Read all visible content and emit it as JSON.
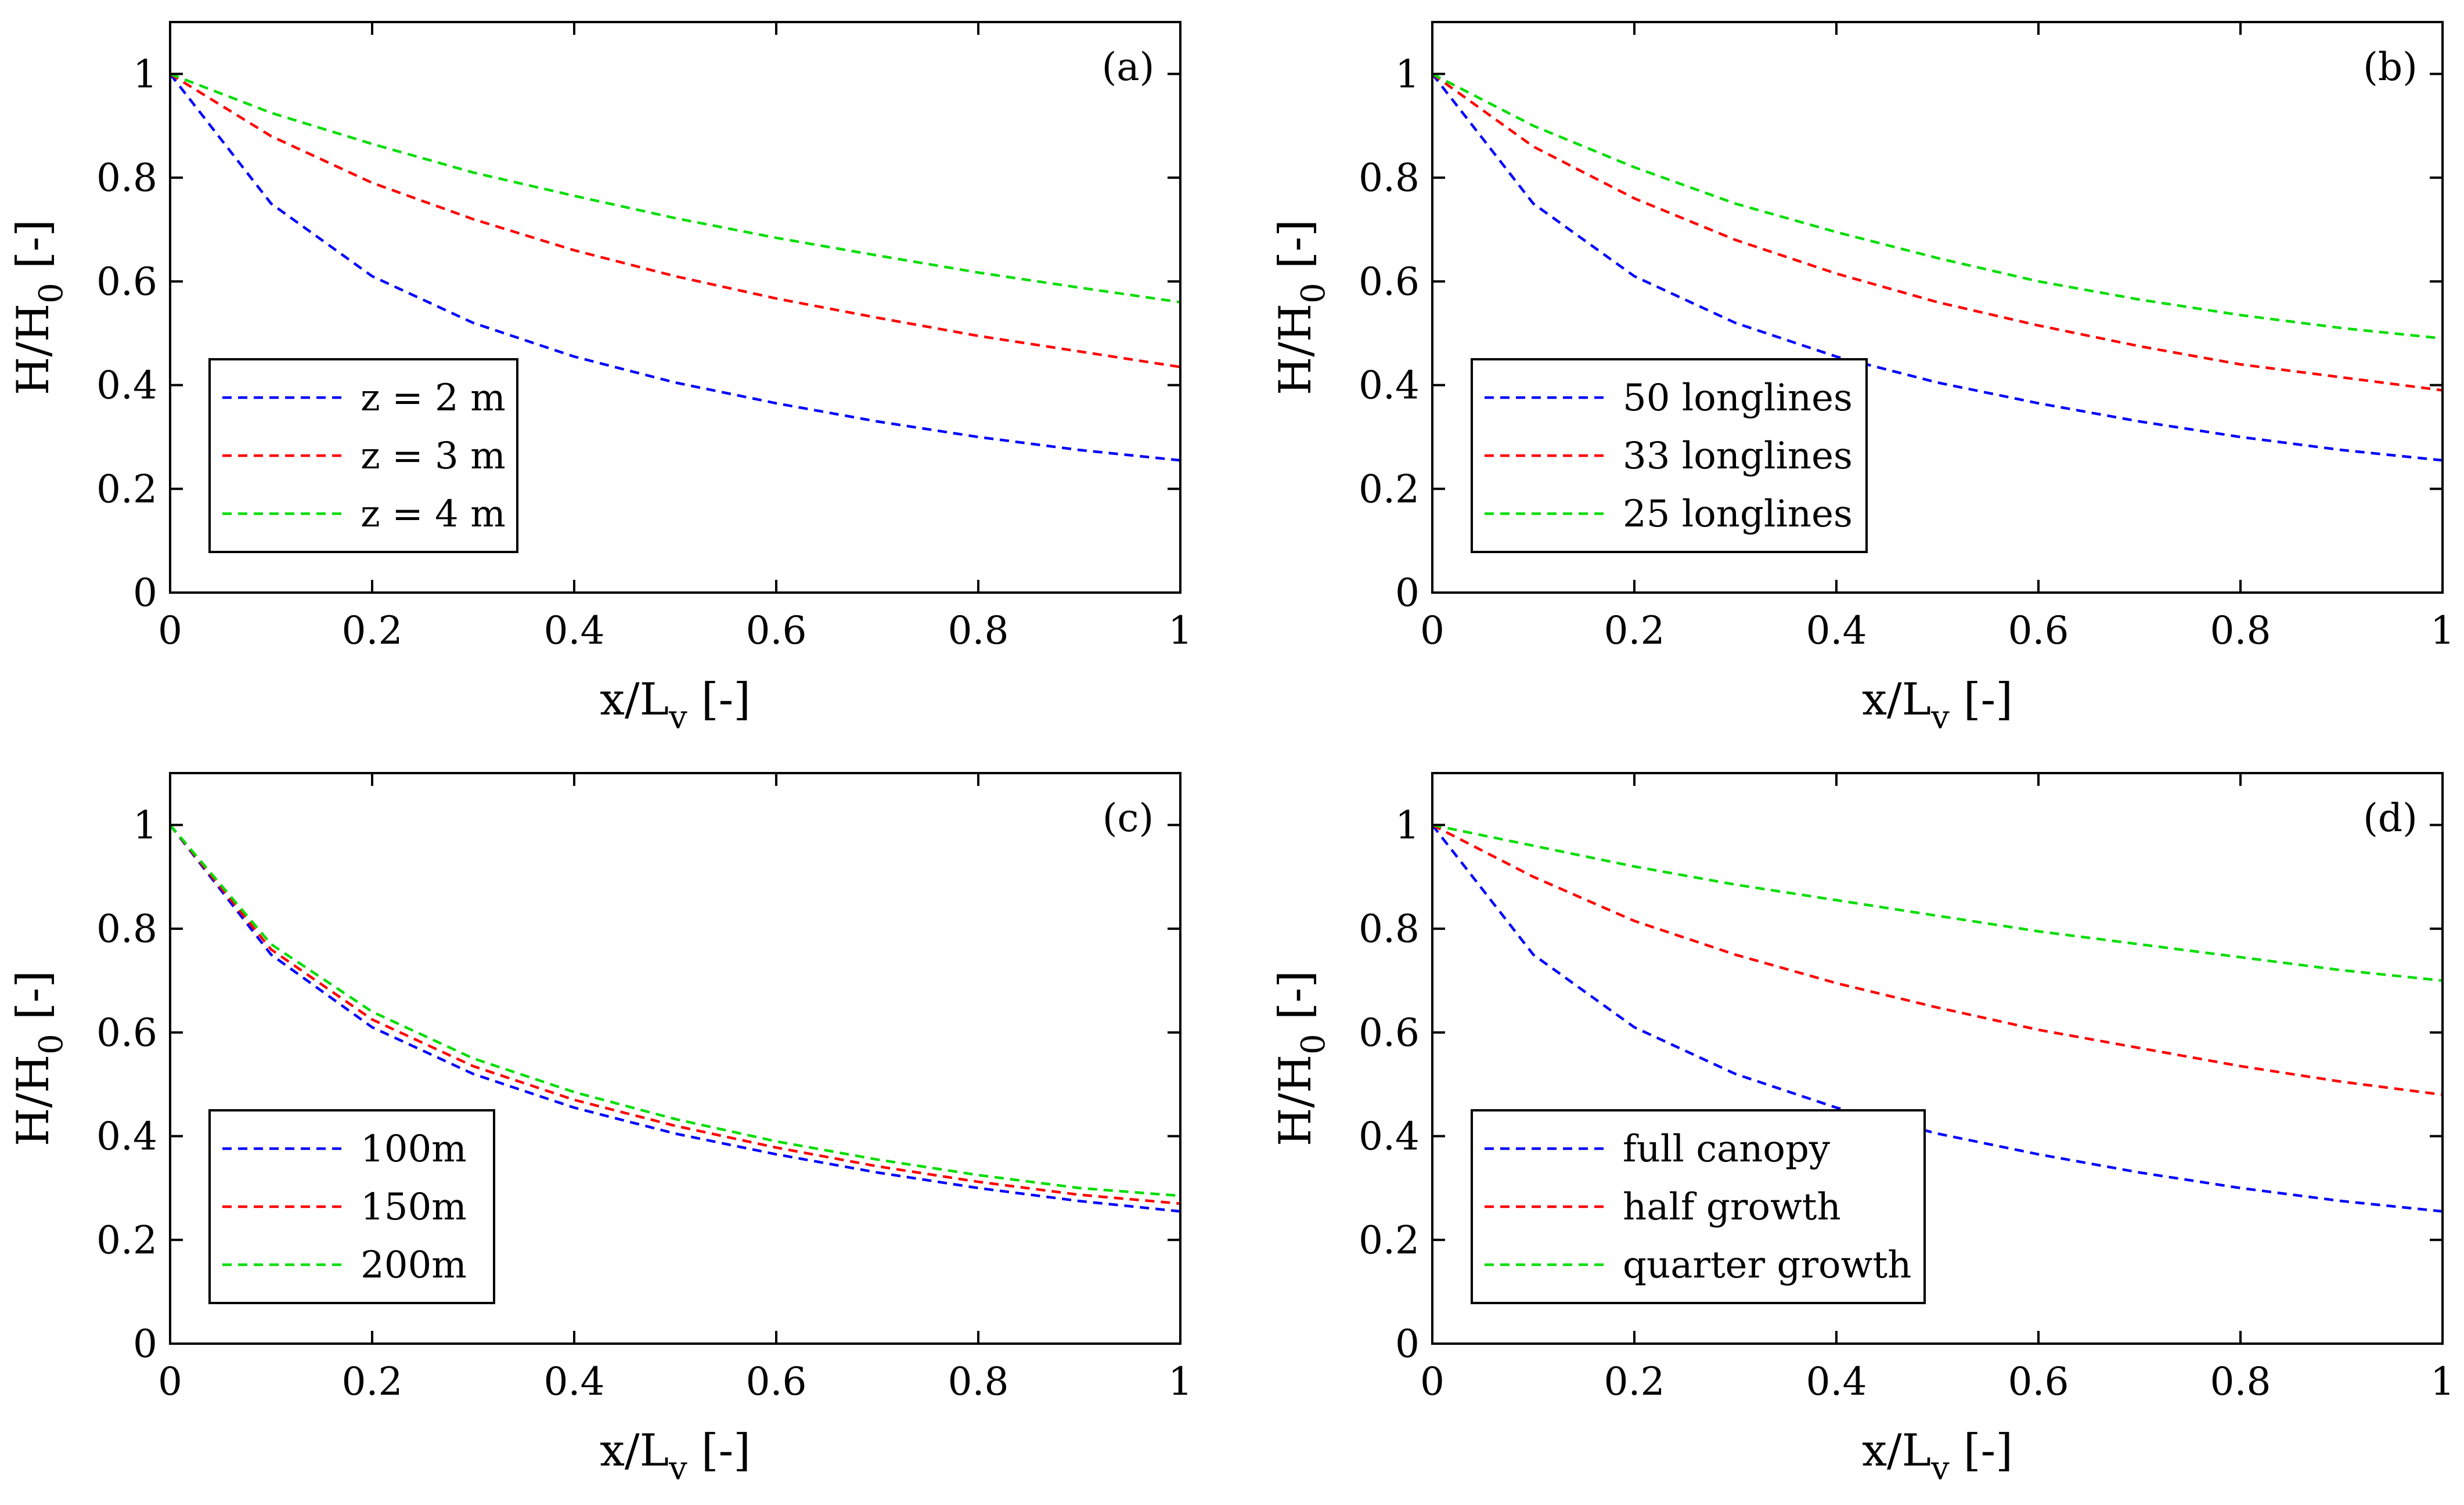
{
  "chart_data": [
    {
      "panel_label": "(a)",
      "type": "line",
      "xlabel_base": "x/L",
      "xlabel_sub": "v",
      "xlabel_unit": "[-]",
      "ylabel_base": "H/H",
      "ylabel_sub": "0",
      "ylabel_unit": "[-]",
      "xlim": [
        0,
        1
      ],
      "ylim": [
        0,
        1.1
      ],
      "xticks": [
        0,
        0.2,
        0.4,
        0.6,
        0.8,
        1
      ],
      "xtick_labels": [
        "0",
        "0.2",
        "0.4",
        "0.6",
        "0.8",
        "1"
      ],
      "yticks": [
        0,
        0.2,
        0.4,
        0.6,
        0.8,
        1
      ],
      "ytick_labels": [
        "0",
        "0.2",
        "0.4",
        "0.6",
        "0.8",
        "1"
      ],
      "legend_position": "lower-left",
      "x": [
        0,
        0.1,
        0.2,
        0.3,
        0.4,
        0.5,
        0.6,
        0.7,
        0.8,
        0.9,
        1.0
      ],
      "series": [
        {
          "name": "z = 2 m",
          "color": "#0000ff",
          "values": [
            1.0,
            0.75,
            0.61,
            0.52,
            0.455,
            0.405,
            0.365,
            0.33,
            0.3,
            0.275,
            0.255
          ]
        },
        {
          "name": "z = 3 m",
          "color": "#ff0000",
          "values": [
            1.0,
            0.88,
            0.79,
            0.72,
            0.66,
            0.61,
            0.567,
            0.53,
            0.495,
            0.465,
            0.435
          ]
        },
        {
          "name": "z = 4 m",
          "color": "#00dd00",
          "values": [
            1.0,
            0.925,
            0.865,
            0.81,
            0.765,
            0.722,
            0.684,
            0.65,
            0.617,
            0.588,
            0.56
          ]
        }
      ]
    },
    {
      "panel_label": "(b)",
      "type": "line",
      "xlabel_base": "x/L",
      "xlabel_sub": "v",
      "xlabel_unit": "[-]",
      "ylabel_base": "H/H",
      "ylabel_sub": "0",
      "ylabel_unit": "[-]",
      "xlim": [
        0,
        1
      ],
      "ylim": [
        0,
        1.1
      ],
      "xticks": [
        0,
        0.2,
        0.4,
        0.6,
        0.8,
        1
      ],
      "xtick_labels": [
        "0",
        "0.2",
        "0.4",
        "0.6",
        "0.8",
        "1"
      ],
      "yticks": [
        0,
        0.2,
        0.4,
        0.6,
        0.8,
        1
      ],
      "ytick_labels": [
        "0",
        "0.2",
        "0.4",
        "0.6",
        "0.8",
        "1"
      ],
      "legend_position": "lower-left",
      "x": [
        0,
        0.1,
        0.2,
        0.3,
        0.4,
        0.5,
        0.6,
        0.7,
        0.8,
        0.9,
        1.0
      ],
      "series": [
        {
          "name": "50 longlines",
          "color": "#0000ff",
          "values": [
            1.0,
            0.75,
            0.61,
            0.52,
            0.455,
            0.405,
            0.365,
            0.33,
            0.3,
            0.275,
            0.255
          ]
        },
        {
          "name": "33 longlines",
          "color": "#ff0000",
          "values": [
            1.0,
            0.86,
            0.76,
            0.68,
            0.615,
            0.56,
            0.515,
            0.475,
            0.44,
            0.415,
            0.39
          ]
        },
        {
          "name": "25 longlines",
          "color": "#00dd00",
          "values": [
            1.0,
            0.9,
            0.82,
            0.75,
            0.695,
            0.645,
            0.6,
            0.565,
            0.535,
            0.51,
            0.49
          ]
        }
      ]
    },
    {
      "panel_label": "(c)",
      "type": "line",
      "xlabel_base": "x/L",
      "xlabel_sub": "v",
      "xlabel_unit": "[-]",
      "ylabel_base": "H/H",
      "ylabel_sub": "0",
      "ylabel_unit": "[-]",
      "xlim": [
        0,
        1
      ],
      "ylim": [
        0,
        1.1
      ],
      "xticks": [
        0,
        0.2,
        0.4,
        0.6,
        0.8,
        1
      ],
      "xtick_labels": [
        "0",
        "0.2",
        "0.4",
        "0.6",
        "0.8",
        "1"
      ],
      "yticks": [
        0,
        0.2,
        0.4,
        0.6,
        0.8,
        1
      ],
      "ytick_labels": [
        "0",
        "0.2",
        "0.4",
        "0.6",
        "0.8",
        "1"
      ],
      "legend_position": "lower-left",
      "x": [
        0,
        0.1,
        0.2,
        0.3,
        0.4,
        0.5,
        0.6,
        0.7,
        0.8,
        0.9,
        1.0
      ],
      "series": [
        {
          "name": "100m",
          "color": "#0000ff",
          "values": [
            1.0,
            0.75,
            0.61,
            0.52,
            0.455,
            0.405,
            0.365,
            0.33,
            0.3,
            0.275,
            0.255
          ]
        },
        {
          "name": "150m",
          "color": "#ff0000",
          "values": [
            1.0,
            0.76,
            0.625,
            0.535,
            0.47,
            0.42,
            0.378,
            0.342,
            0.312,
            0.287,
            0.27
          ]
        },
        {
          "name": "200m",
          "color": "#00dd00",
          "values": [
            1.0,
            0.77,
            0.64,
            0.55,
            0.485,
            0.433,
            0.39,
            0.355,
            0.325,
            0.3,
            0.285
          ]
        }
      ]
    },
    {
      "panel_label": "(d)",
      "type": "line",
      "xlabel_base": "x/L",
      "xlabel_sub": "v",
      "xlabel_unit": "[-]",
      "ylabel_base": "H/H",
      "ylabel_sub": "0",
      "ylabel_unit": "[-]",
      "xlim": [
        0,
        1
      ],
      "ylim": [
        0,
        1.1
      ],
      "xticks": [
        0,
        0.2,
        0.4,
        0.6,
        0.8,
        1
      ],
      "xtick_labels": [
        "0",
        "0.2",
        "0.4",
        "0.6",
        "0.8",
        "1"
      ],
      "yticks": [
        0,
        0.2,
        0.4,
        0.6,
        0.8,
        1
      ],
      "ytick_labels": [
        "0",
        "0.2",
        "0.4",
        "0.6",
        "0.8",
        "1"
      ],
      "legend_position": "lower-left",
      "x": [
        0,
        0.1,
        0.2,
        0.3,
        0.4,
        0.5,
        0.6,
        0.7,
        0.8,
        0.9,
        1.0
      ],
      "series": [
        {
          "name": "full canopy",
          "color": "#0000ff",
          "values": [
            1.0,
            0.75,
            0.61,
            0.52,
            0.455,
            0.405,
            0.365,
            0.33,
            0.3,
            0.275,
            0.255
          ]
        },
        {
          "name": "half growth",
          "color": "#ff0000",
          "values": [
            1.0,
            0.9,
            0.815,
            0.75,
            0.695,
            0.648,
            0.605,
            0.57,
            0.535,
            0.505,
            0.48
          ]
        },
        {
          "name": "quarter growth",
          "color": "#00dd00",
          "values": [
            1.0,
            0.96,
            0.92,
            0.885,
            0.855,
            0.825,
            0.795,
            0.77,
            0.745,
            0.72,
            0.7
          ]
        }
      ]
    }
  ]
}
